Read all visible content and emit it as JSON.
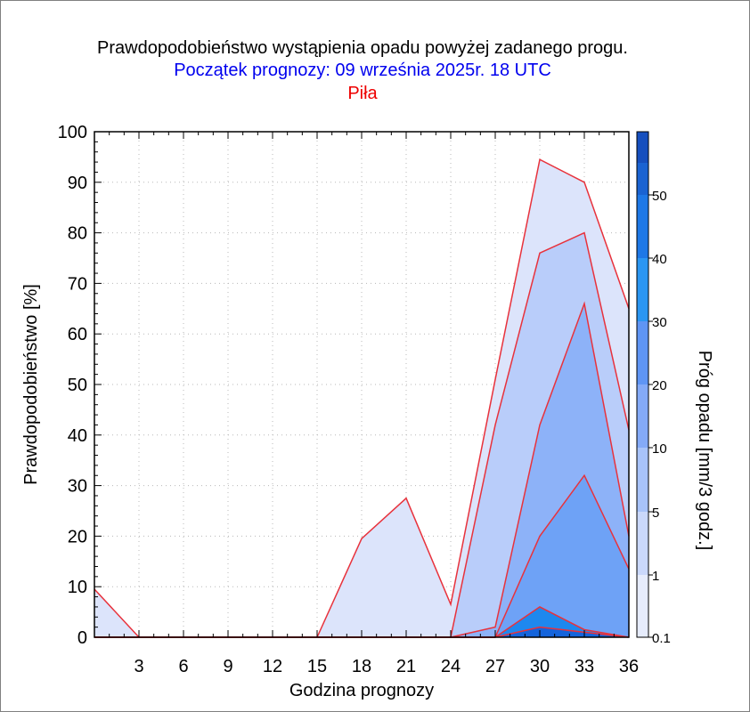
{
  "titles": {
    "line1": "Prawdopodobieństwo wystąpienia opadu powyżej zadanego progu.",
    "line2": "Początek prognozy: 09 września 2025r. 18 UTC",
    "line3": "Piła"
  },
  "colors": {
    "title_line2": "#0000ee",
    "title_line3": "#ee0000",
    "outline": "#e8323c",
    "axis": "#000000"
  },
  "chart_data": {
    "type": "area",
    "xlabel": "Godzina prognozy",
    "ylabel": "Prawdopodobieństwo [%]",
    "colorbar_label": "Próg opadu [mm/3 godz.]",
    "xlim": [
      0,
      36
    ],
    "ylim": [
      0,
      100
    ],
    "x_ticks": [
      3,
      6,
      9,
      12,
      15,
      18,
      21,
      24,
      27,
      30,
      33,
      36
    ],
    "y_ticks": [
      0,
      10,
      20,
      30,
      40,
      50,
      60,
      70,
      80,
      90,
      100
    ],
    "grid": true,
    "x": [
      0,
      3,
      6,
      9,
      12,
      15,
      18,
      21,
      24,
      27,
      30,
      33,
      36
    ],
    "series": [
      {
        "name": "0.1",
        "color": "#dce4fb",
        "values": [
          9.5,
          0,
          0,
          0,
          0,
          0,
          19.5,
          27.5,
          6.5,
          51,
          94.5,
          90,
          65
        ]
      },
      {
        "name": "1",
        "color": "#b9cdfa",
        "values": [
          0,
          0,
          0,
          0,
          0,
          0,
          0,
          0,
          0,
          42,
          76,
          80,
          41
        ]
      },
      {
        "name": "5",
        "color": "#8db2f8",
        "values": [
          0,
          0,
          0,
          0,
          0,
          0,
          0,
          0,
          0,
          2,
          42,
          66,
          20
        ]
      },
      {
        "name": "10",
        "color": "#6ea2f6",
        "values": [
          0,
          0,
          0,
          0,
          0,
          0,
          0,
          0,
          0,
          0,
          20,
          32,
          13.5
        ]
      },
      {
        "name": "20",
        "color": "#1e88ee",
        "values": [
          0,
          0,
          0,
          0,
          0,
          0,
          0,
          0,
          0,
          0,
          6,
          1.5,
          0
        ]
      },
      {
        "name": "30",
        "color": "#1464dc",
        "values": [
          0,
          0,
          0,
          0,
          0,
          0,
          0,
          0,
          0,
          0,
          2,
          1,
          0
        ]
      }
    ],
    "colorbar": {
      "labels": [
        "0.1",
        "1",
        "5",
        "10",
        "20",
        "30",
        "40",
        "50"
      ],
      "colors": [
        "#e6ecfc",
        "#cad8fb",
        "#a8c3f9",
        "#84aaf7",
        "#5f95f4",
        "#2a96f2",
        "#1e78e6",
        "#1a63d2",
        "#164fbe",
        "#123aa6"
      ]
    }
  }
}
